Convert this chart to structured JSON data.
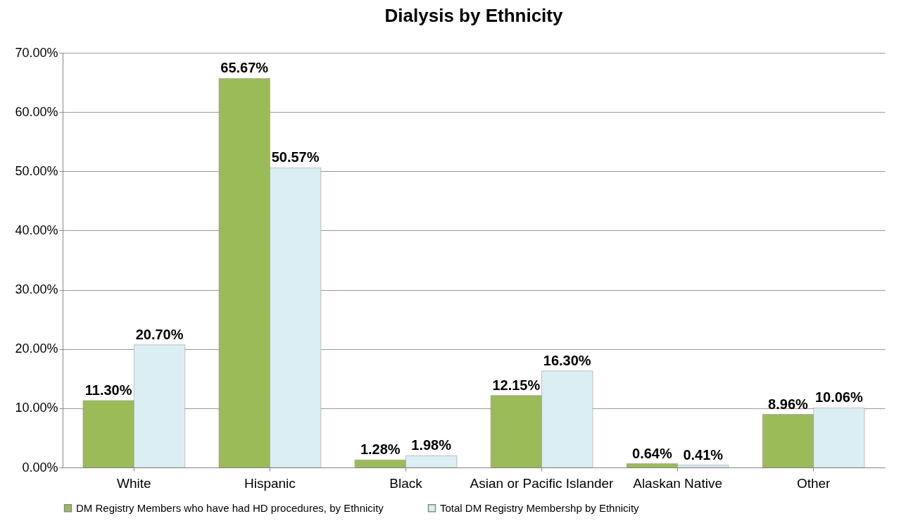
{
  "chart_data": {
    "type": "bar",
    "title": "Dialysis by Ethnicity",
    "categories": [
      "White",
      "Hispanic",
      "Black",
      "Asian or Pacific Islander",
      "Alaskan Native",
      "Other"
    ],
    "series": [
      {
        "name": "DM Registry Members who have had HD procedures, by Ethnicity",
        "color": "#9bbb59",
        "values": [
          11.3,
          65.67,
          1.28,
          12.15,
          0.64,
          8.96
        ],
        "value_labels": [
          "11.30%",
          "65.67%",
          "1.28%",
          "12.15%",
          "0.64%",
          "8.96%"
        ]
      },
      {
        "name": "Total DM Registry Membershp by Ethnicity",
        "color": "#dbeef4",
        "values": [
          20.7,
          50.57,
          1.98,
          16.3,
          0.41,
          10.06
        ],
        "value_labels": [
          "20.70%",
          "50.57%",
          "1.98%",
          "16.30%",
          "0.41%",
          "10.06%"
        ]
      }
    ],
    "ylim": [
      0,
      70
    ],
    "yticks": [
      {
        "value": 0,
        "label": "0.00%"
      },
      {
        "value": 10,
        "label": "10.00%"
      },
      {
        "value": 20,
        "label": "20.00%"
      },
      {
        "value": 30,
        "label": "30.00%"
      },
      {
        "value": 40,
        "label": "40.00%"
      },
      {
        "value": 50,
        "label": "50.00%"
      },
      {
        "value": 60,
        "label": "60.00%"
      },
      {
        "value": 70,
        "label": "70.00%"
      }
    ],
    "grid": "y",
    "legend": "bottom"
  }
}
